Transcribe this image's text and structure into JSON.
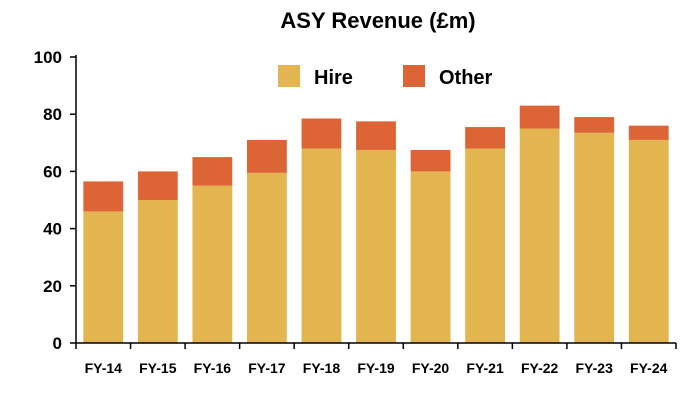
{
  "chart_data": {
    "type": "bar",
    "stacked": true,
    "title": "ASY Revenue (£m)",
    "xlabel": "",
    "ylabel": "",
    "categories": [
      "FY-14",
      "FY-15",
      "FY-16",
      "FY-17",
      "FY-18",
      "FY-19",
      "FY-20",
      "FY-21",
      "FY-22",
      "FY-23",
      "FY-24"
    ],
    "series": [
      {
        "name": "Hire",
        "color": "#E3B550",
        "values": [
          46,
          50,
          55,
          59.5,
          68,
          67.5,
          60,
          68,
          75,
          73.5,
          71
        ]
      },
      {
        "name": "Other",
        "color": "#DC6435",
        "values": [
          10.5,
          10,
          10,
          11.5,
          10.5,
          10,
          7.5,
          7.5,
          8,
          5.5,
          5
        ]
      }
    ],
    "ylim": [
      0,
      100
    ],
    "yticks": [
      "0",
      "20",
      "40",
      "60",
      "80",
      "100"
    ],
    "ytick_values": [
      0,
      20,
      40,
      60,
      80,
      100
    ],
    "grid": false,
    "legend": "top-center"
  }
}
